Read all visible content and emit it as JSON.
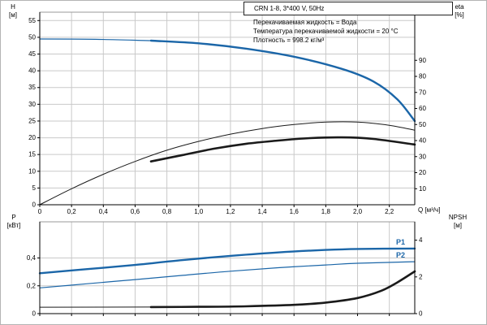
{
  "colors": {
    "blue": "#1b66a8",
    "black": "#1a1a1a",
    "grid": "#c9c9c9",
    "frame": "#999999",
    "axis": "#000000"
  },
  "labels": {
    "h": "H",
    "h_unit": "[м]",
    "eta": "eta",
    "eta_unit": "[%]",
    "q": "Q [м³/ч]",
    "p": "P",
    "p_unit": "[кВт]",
    "npsh": "NPSH",
    "npsh_unit": "[м]"
  },
  "chart_data": [
    {
      "type": "line",
      "title": "CRN 1-8, 3*400 V, 50Hz",
      "annotations": [
        "Перекачиваемая жидкость = Вода",
        "Температура перекачиваемой жидкости = 20 °C",
        "Плотность = 998.2 кг/м³"
      ],
      "x": {
        "label": "Q [м³/ч]",
        "min": 0,
        "max": 2.36,
        "ticks": [
          0,
          0.2,
          0.4,
          0.6,
          0.8,
          1.0,
          1.2,
          1.4,
          1.6,
          1.8,
          2.0,
          2.2
        ],
        "tick_labels": [
          "0",
          "0,2",
          "0,4",
          "0,6",
          "0,8",
          "1,0",
          "1,2",
          "1,4",
          "1,6",
          "1,8",
          "2,0",
          "2,2"
        ]
      },
      "y_left": {
        "label": "H [м]",
        "min": 0,
        "max": 57.5,
        "ticks": [
          0,
          5,
          10,
          15,
          20,
          25,
          30,
          35,
          40,
          45,
          50,
          55
        ],
        "tick_labels": [
          "0",
          "5",
          "10",
          "15",
          "20",
          "25",
          "30",
          "35",
          "40",
          "45",
          "50",
          "55"
        ]
      },
      "y_right": {
        "label": "eta [%]",
        "min": 0,
        "max": 120,
        "ticks": [
          10,
          20,
          30,
          40,
          50,
          60,
          70,
          80,
          90
        ],
        "tick_labels": [
          "10",
          "20",
          "30",
          "40",
          "50",
          "60",
          "70",
          "80",
          "90"
        ]
      },
      "series": [
        {
          "name": "H_low_flow",
          "axis": "left",
          "color": "blue",
          "width": 1.2,
          "points": [
            [
              0,
              49.5
            ],
            [
              0.35,
              49.4
            ],
            [
              0.7,
              49
            ]
          ]
        },
        {
          "name": "H",
          "axis": "left",
          "color": "blue",
          "width": 2.4,
          "points": [
            [
              0.7,
              49
            ],
            [
              1.0,
              48.2
            ],
            [
              1.3,
              46.6
            ],
            [
              1.6,
              44.2
            ],
            [
              1.9,
              40.6
            ],
            [
              2.1,
              36.8
            ],
            [
              2.25,
              31.5
            ],
            [
              2.36,
              25
            ]
          ]
        },
        {
          "name": "eta_pump",
          "axis": "right",
          "color": "black",
          "width": 1,
          "points": [
            [
              0,
              0
            ],
            [
              0.2,
              10
            ],
            [
              0.4,
              19
            ],
            [
              0.6,
              27
            ],
            [
              0.8,
              34
            ],
            [
              1.0,
              39.5
            ],
            [
              1.2,
              44
            ],
            [
              1.4,
              47.5
            ],
            [
              1.6,
              50
            ],
            [
              1.8,
              51.5
            ],
            [
              2.0,
              51.5
            ],
            [
              2.2,
              49.5
            ],
            [
              2.36,
              46.5
            ]
          ]
        },
        {
          "name": "eta_pump_motor",
          "axis": "right",
          "color": "black",
          "width": 2.6,
          "points": [
            [
              0.7,
              27
            ],
            [
              0.9,
              31
            ],
            [
              1.1,
              35
            ],
            [
              1.3,
              38
            ],
            [
              1.5,
              40
            ],
            [
              1.7,
              41.5
            ],
            [
              1.9,
              42
            ],
            [
              2.1,
              41
            ],
            [
              2.36,
              37.5
            ]
          ]
        }
      ]
    },
    {
      "type": "line",
      "title": "",
      "x": {
        "label": "",
        "min": 0,
        "max": 2.36,
        "ticks": [
          0,
          0.2,
          0.4,
          0.6,
          0.8,
          1.0,
          1.2,
          1.4,
          1.6,
          1.8,
          2.0,
          2.2
        ]
      },
      "y_left": {
        "label": "P [кВт]",
        "min": 0,
        "max": 0.66,
        "ticks": [
          0,
          0.2,
          0.4
        ],
        "tick_labels": [
          "0",
          "0,2",
          "0,4"
        ]
      },
      "y_right": {
        "label": "NPSH [м]",
        "min": 0,
        "max": 5,
        "ticks": [
          0,
          2,
          4
        ],
        "tick_labels": [
          "0",
          "2",
          "4"
        ]
      },
      "series": [
        {
          "name": "P1",
          "label": "P1",
          "axis": "left",
          "color": "blue",
          "width": 2.4,
          "points": [
            [
              0,
              0.29
            ],
            [
              0.3,
              0.32
            ],
            [
              0.6,
              0.35
            ],
            [
              0.9,
              0.385
            ],
            [
              1.2,
              0.415
            ],
            [
              1.5,
              0.44
            ],
            [
              1.8,
              0.458
            ],
            [
              2.0,
              0.465
            ],
            [
              2.36,
              0.468
            ]
          ]
        },
        {
          "name": "P2",
          "label": "P2",
          "axis": "left",
          "color": "blue",
          "width": 1.2,
          "points": [
            [
              0,
              0.185
            ],
            [
              0.3,
              0.215
            ],
            [
              0.6,
              0.245
            ],
            [
              0.9,
              0.275
            ],
            [
              1.2,
              0.305
            ],
            [
              1.5,
              0.33
            ],
            [
              1.8,
              0.35
            ],
            [
              2.0,
              0.362
            ],
            [
              2.36,
              0.373
            ]
          ]
        },
        {
          "name": "NPSH_low_flow",
          "axis": "right",
          "color": "black",
          "width": 1,
          "points": [
            [
              0,
              0.35
            ],
            [
              0.7,
              0.36
            ]
          ]
        },
        {
          "name": "NPSH",
          "axis": "right",
          "color": "black",
          "width": 2.6,
          "points": [
            [
              0.7,
              0.36
            ],
            [
              1.0,
              0.37
            ],
            [
              1.3,
              0.4
            ],
            [
              1.6,
              0.48
            ],
            [
              1.8,
              0.6
            ],
            [
              2.0,
              0.85
            ],
            [
              2.15,
              1.25
            ],
            [
              2.25,
              1.7
            ],
            [
              2.36,
              2.3
            ]
          ]
        }
      ]
    }
  ]
}
